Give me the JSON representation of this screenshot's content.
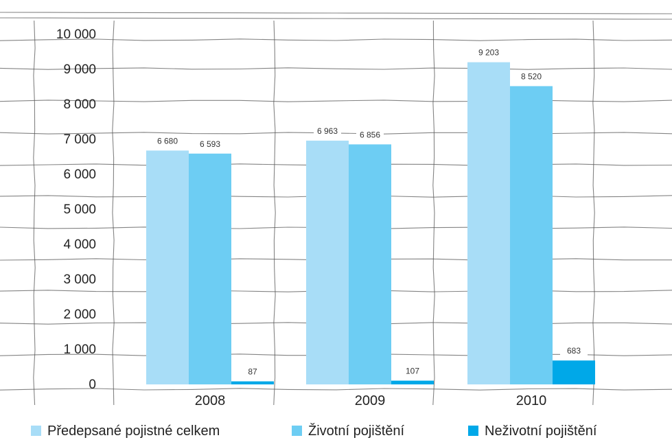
{
  "chart_data": {
    "type": "bar",
    "categories": [
      "2008",
      "2009",
      "2010"
    ],
    "series": [
      {
        "name": "Předepsané pojistné celkem",
        "values": [
          6680,
          6963,
          9203
        ],
        "labels": [
          "6 680",
          "6 963",
          "9 203"
        ]
      },
      {
        "name": "Životní pojištění",
        "values": [
          6593,
          6856,
          8520
        ],
        "labels": [
          "6 593",
          "6 856",
          "8 520"
        ]
      },
      {
        "name": "Neživotní pojištění",
        "values": [
          87,
          107,
          683
        ],
        "labels": [
          "87",
          "107",
          "683"
        ]
      }
    ],
    "colors": [
      "#a8ddf7",
      "#6dcdf3",
      "#00a8e8"
    ],
    "ylim": [
      0,
      10000
    ],
    "yticks": [
      0,
      1000,
      2000,
      3000,
      4000,
      5000,
      6000,
      7000,
      8000,
      9000,
      10000
    ],
    "ytick_labels": [
      "0",
      "1 000",
      "2 000",
      "3 000",
      "4 000",
      "5 000",
      "6 000",
      "7 000",
      "8 000",
      "9 000",
      "10 000"
    ],
    "grid": true,
    "legend_position": "bottom",
    "title": "",
    "xlabel": "",
    "ylabel": ""
  }
}
